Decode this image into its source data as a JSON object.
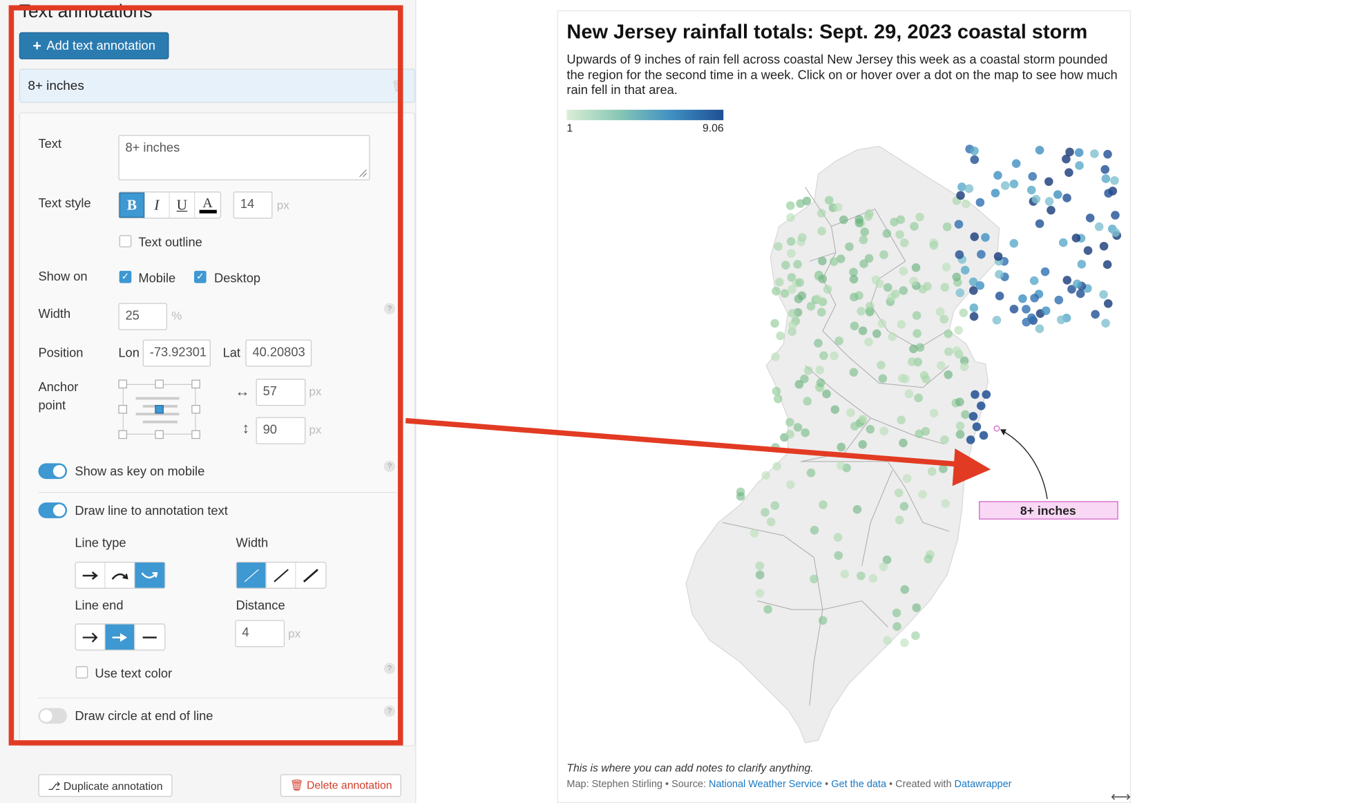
{
  "left_panel": {
    "section_title": "Text annotations",
    "add_button_label": "Add text annotation",
    "selected_annotation": "8+ inches",
    "text_label": "Text",
    "text_value": "8+ inches",
    "text_style_label": "Text style",
    "format_buttons": [
      "B",
      "I",
      "U",
      "A"
    ],
    "font_size": "14",
    "px": "px",
    "text_outline_label": "Text outline",
    "show_on_label": "Show on",
    "mobile_label": "Mobile",
    "desktop_label": "Desktop",
    "width_label": "Width",
    "width_value": "25",
    "percent": "%",
    "position_label": "Position",
    "lon_label": "Lon",
    "lon_value": "-73.92301",
    "lat_label": "Lat",
    "lat_value": "40.20803",
    "anchor_label_1": "Anchor",
    "anchor_label_2": "point",
    "offset_x": "57",
    "offset_y": "90",
    "show_key_label": "Show as key on mobile",
    "draw_line_label": "Draw line to annotation text",
    "line_type_label": "Line type",
    "line_width_label": "Width",
    "line_end_label": "Line end",
    "distance_label": "Distance",
    "distance_value": "4",
    "use_text_color_label": "Use text color",
    "draw_circle_label": "Draw circle at end of line",
    "duplicate_label": "Duplicate annotation",
    "delete_label": "Delete annotation",
    "help": "?"
  },
  "chart": {
    "title": "New Jersey rainfall totals: Sept. 29, 2023 coastal storm",
    "description": "Upwards of 9 inches of rain fell across coastal New Jersey this week as a coastal storm pounded the region for the second time in a week. Click on or hover over a dot on the map to see how much rain fell in that area.",
    "legend_min": "1",
    "legend_max": "9.06",
    "annotation_text": "8+ inches",
    "notes": "This is where you can add notes to clarify anything.",
    "byline_prefix": "Map: Stephen Stirling • Source: ",
    "source_link": "National Weather Service",
    "sep1": " • ",
    "get_data": "Get the data",
    "sep2": " • Created with ",
    "created_with": "Datawrapper"
  },
  "colors": {
    "accent": "#3e98d2",
    "highlight_red": "#e23b23",
    "annotation_pink": "#f9d8f5",
    "legend_low": "#dbeed6",
    "legend_high": "#1f4f94"
  },
  "icons": [
    "plus-icon",
    "trash-icon",
    "bold-icon",
    "italic-icon",
    "underline-icon",
    "text-color-icon",
    "horizontal-arrows-icon",
    "vertical-arrows-icon",
    "duplicate-icon",
    "resize-icon"
  ]
}
